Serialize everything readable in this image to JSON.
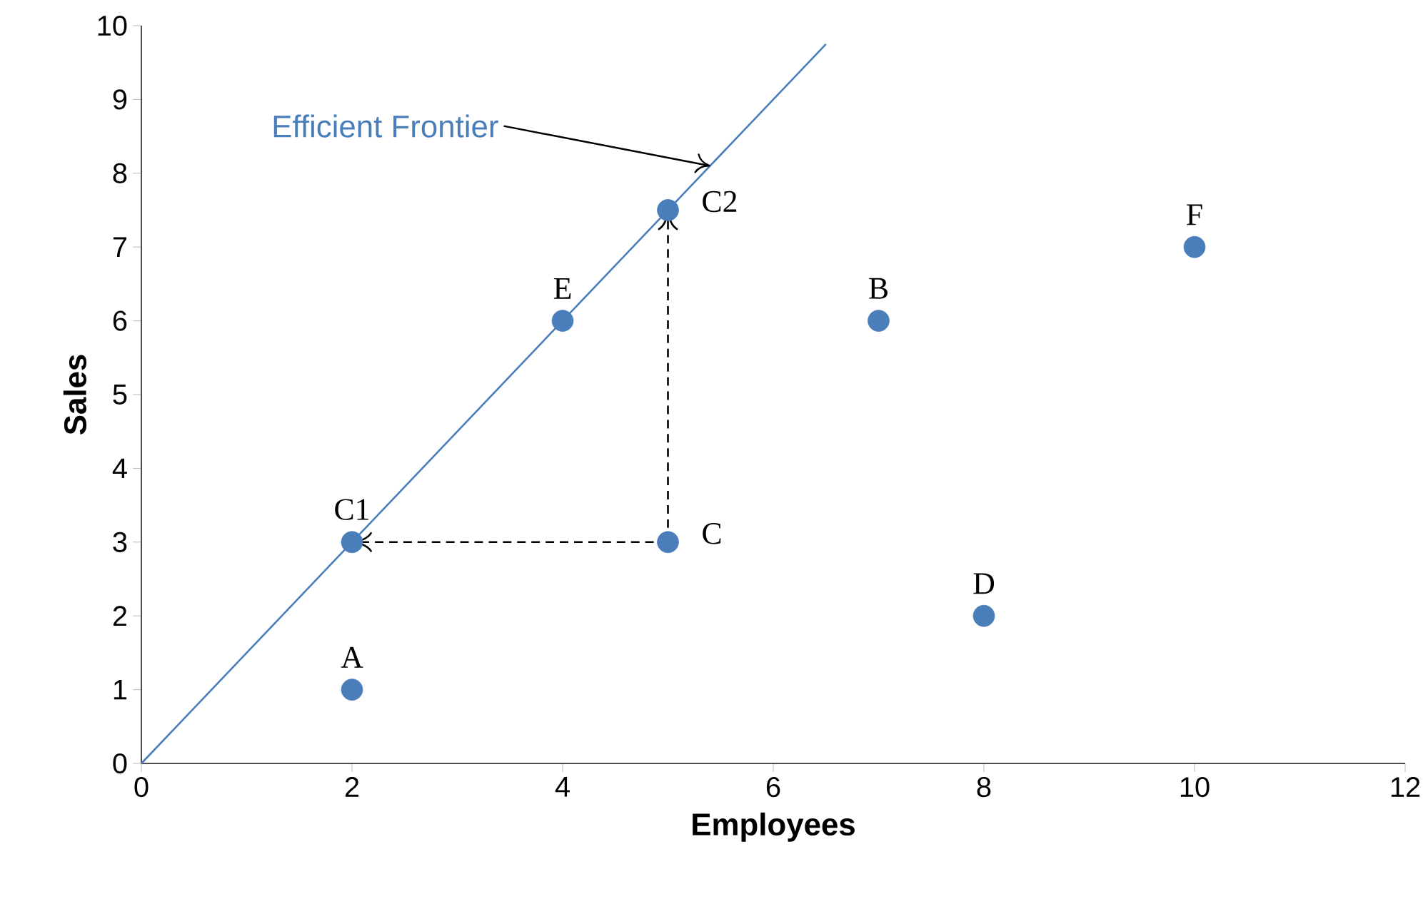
{
  "chart_data": {
    "type": "scatter",
    "xlabel": "Employees",
    "ylabel": "Sales",
    "xlim": [
      0,
      12
    ],
    "ylim": [
      0,
      10
    ],
    "xticks": [
      0,
      2,
      4,
      6,
      8,
      10,
      12
    ],
    "yticks": [
      0,
      1,
      2,
      3,
      4,
      5,
      6,
      7,
      8,
      9,
      10
    ],
    "marker": "circle",
    "series": [
      {
        "type": "line",
        "marker": "none",
        "color": "#4a7ebb",
        "x": [
          0,
          6.5
        ],
        "values": [
          0,
          9.75
        ]
      },
      {
        "type": "line",
        "marker": "none",
        "color": "#000000",
        "line_style": "dashed",
        "x": [
          5,
          2
        ],
        "values": [
          3,
          3
        ]
      },
      {
        "type": "line",
        "marker": "none",
        "color": "#000000",
        "line_style": "dashed",
        "x": [
          5,
          5
        ],
        "values": [
          3,
          7.5
        ]
      },
      {
        "color": "#4a7ebb",
        "x": [
          2,
          2,
          4,
          5,
          5,
          7,
          8,
          10
        ],
        "values": [
          1,
          3,
          6,
          7.5,
          3,
          6,
          2,
          7
        ]
      }
    ],
    "annotations": [
      {
        "text": "Efficient Frontier",
        "x": 5.4,
        "y": 8.1
      },
      {
        "text": "A",
        "x": 2,
        "y": 1
      },
      {
        "text": "C1",
        "x": 2,
        "y": 3
      },
      {
        "text": "E",
        "x": 4,
        "y": 6
      },
      {
        "text": "C2",
        "x": 5,
        "y": 7.5
      },
      {
        "text": "C",
        "x": 5,
        "y": 3
      },
      {
        "text": "B",
        "x": 7,
        "y": 6
      },
      {
        "text": "D",
        "x": 8,
        "y": 2
      },
      {
        "text": "F",
        "x": 10,
        "y": 7
      }
    ]
  }
}
